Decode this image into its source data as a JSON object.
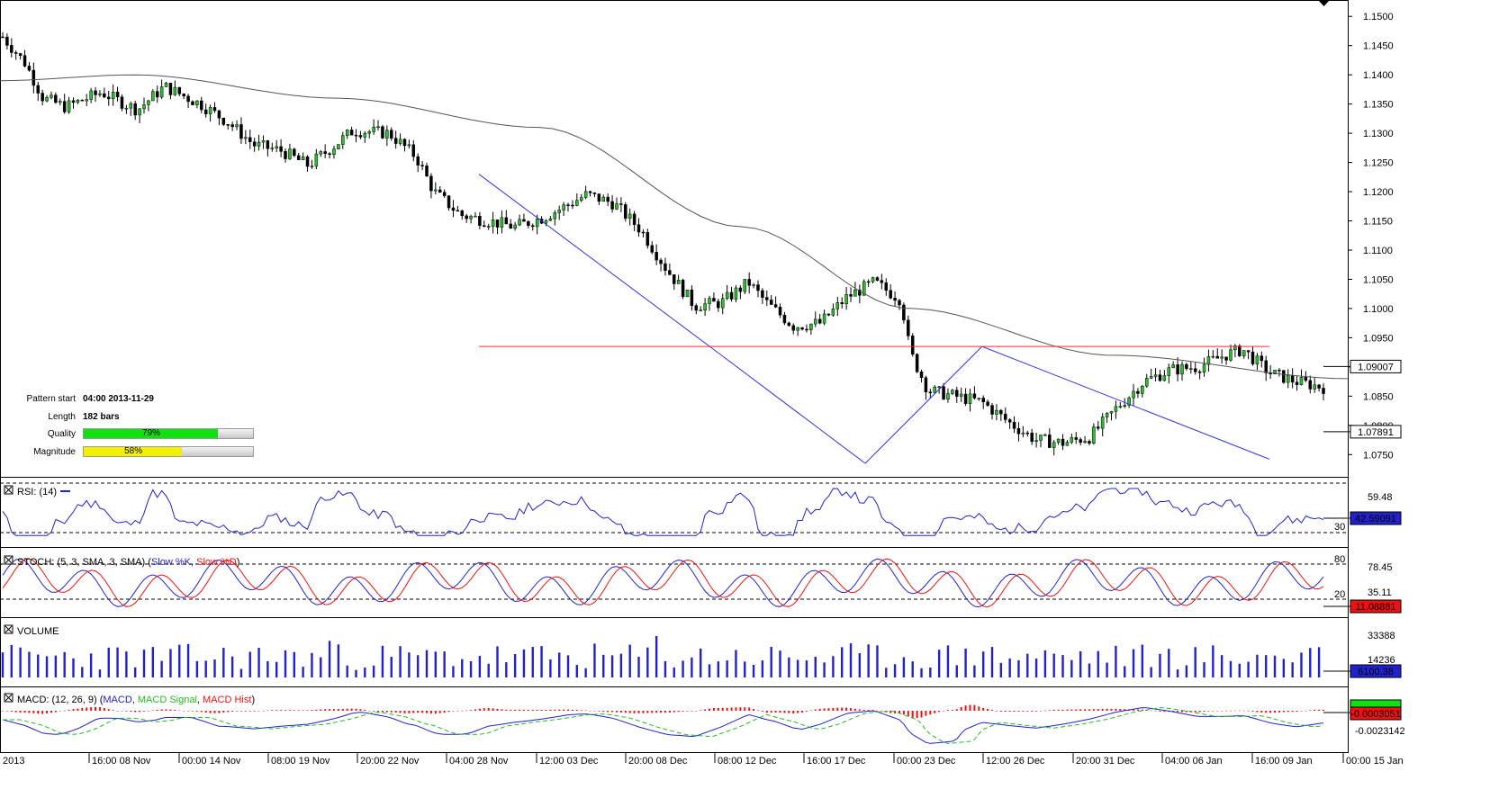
{
  "symbol_mark": "2013",
  "pattern_box": {
    "start_label": "Pattern start",
    "start_value": "04:00 2013-11-29",
    "length_label": "Length",
    "length_value": "182 bars",
    "quality_label": "Quality",
    "quality_value": "79%",
    "quality_pct": 79,
    "quality_color": "#11e011",
    "magnitude_label": "Magnitude",
    "magnitude_value": "58%",
    "magnitude_pct": 58,
    "magnitude_color": "#f2f200"
  },
  "chart_data": {
    "type": "candlestick",
    "x_tick_labels": [
      "16:00 08 Nov",
      "00:00 14 Nov",
      "08:00 19 Nov",
      "20:00 22 Nov",
      "04:00 28 Nov",
      "12:00 03 Dec",
      "20:00 08 Dec",
      "08:00 12 Dec",
      "16:00 17 Dec",
      "00:00 23 Dec",
      "12:00 26 Dec",
      "20:00 31 Dec",
      "04:00 06 Jan",
      "16:00 09 Jan",
      "00:00 15 Jan"
    ],
    "price_axis": {
      "ticks": [
        "1.1500",
        "1.1450",
        "1.1400",
        "1.1350",
        "1.1300",
        "1.1250",
        "1.1200",
        "1.1150",
        "1.1100",
        "1.1050",
        "1.1000",
        "1.0950",
        "1.0900",
        "1.0850",
        "1.0800",
        "1.0750"
      ],
      "range": [
        1.0715,
        1.1525
      ],
      "ma_value": "1.09007",
      "last_value": "1.07891"
    },
    "candle_count": 300,
    "close_path": [
      [
        0,
        1.1465
      ],
      [
        5,
        1.142
      ],
      [
        9,
        1.136
      ],
      [
        14,
        1.1345
      ],
      [
        22,
        1.137
      ],
      [
        30,
        1.134
      ],
      [
        36,
        1.138
      ],
      [
        44,
        1.135
      ],
      [
        50,
        1.132
      ],
      [
        56,
        1.128
      ],
      [
        62,
        1.127
      ],
      [
        68,
        1.1245
      ],
      [
        74,
        1.128
      ],
      [
        78,
        1.1305
      ],
      [
        86,
        1.13
      ],
      [
        92,
        1.126
      ],
      [
        96,
        1.12
      ],
      [
        102,
        1.116
      ],
      [
        108,
        1.115
      ],
      [
        114,
        1.114
      ],
      [
        120,
        1.1155
      ],
      [
        124,
        1.117
      ],
      [
        130,
        1.1195
      ],
      [
        136,
        1.118
      ],
      [
        142,
        1.1135
      ],
      [
        148,
        1.1065
      ],
      [
        154,
        1.1005
      ],
      [
        160,
        1.101
      ],
      [
        166,
        1.1045
      ],
      [
        170,
        1.101
      ],
      [
        176,
        1.097
      ],
      [
        182,
        1.0975
      ],
      [
        188,
        1.102
      ],
      [
        194,
        1.1045
      ],
      [
        200,
        1.1015
      ],
      [
        202,
        1.0925
      ],
      [
        206,
        1.086
      ],
      [
        212,
        1.085
      ],
      [
        218,
        1.084
      ],
      [
        224,
        1.0805
      ],
      [
        230,
        1.0775
      ],
      [
        236,
        1.077
      ],
      [
        242,
        1.078
      ],
      [
        248,
        1.083
      ],
      [
        254,
        1.0875
      ],
      [
        260,
        1.0895
      ],
      [
        266,
        1.09
      ],
      [
        272,
        1.092
      ],
      [
        276,
        1.093
      ],
      [
        282,
        1.089
      ],
      [
        288,
        1.0875
      ],
      [
        294,
        1.0865
      ]
    ],
    "ma200": [
      [
        0,
        1.139
      ],
      [
        40,
        1.14
      ],
      [
        100,
        1.136
      ],
      [
        160,
        1.131
      ],
      [
        220,
        1.114
      ],
      [
        270,
        1.1
      ],
      [
        330,
        1.092
      ],
      [
        400,
        1.088
      ]
    ],
    "pattern_lines": [
      {
        "from": [
          106,
          1.123
        ],
        "to": [
          160,
          1.092
        ],
        "color": "#3333dd"
      },
      {
        "from": [
          160,
          1.092
        ],
        "to": [
          192,
          1.0735
        ],
        "color": "#3333dd"
      },
      {
        "from": [
          192,
          1.0735
        ],
        "to": [
          218,
          1.0935
        ],
        "color": "#3333dd"
      },
      {
        "from": [
          218,
          1.0935
        ],
        "to": [
          282,
          1.0742
        ],
        "color": "#3333dd"
      },
      {
        "from": [
          106,
          1.0935
        ],
        "to": [
          282,
          1.0935
        ],
        "color": "#ff2a2a"
      }
    ],
    "panels": [
      {
        "name": "RSI",
        "label": "RSI: (14)",
        "levels": [
          "30"
        ],
        "values": [
          "59.48",
          "42.59091"
        ],
        "value_box_color": "#2222cc"
      },
      {
        "name": "STOCH",
        "label": "STOCH: (5, 3, SMA, 3, SMA)",
        "legend": [
          "Slow %K",
          "Slow %D"
        ],
        "legend_colors": [
          "#2222cc",
          "#ee1111"
        ],
        "levels": [
          "80",
          "20"
        ],
        "values": [
          "78.45",
          "35.11",
          "11.08881"
        ],
        "value_box_color": "#ee1111"
      },
      {
        "name": "VOLUME",
        "label": "VOLUME",
        "values": [
          "33388",
          "14236",
          "6100.38"
        ],
        "value_box_color": "#2222cc"
      },
      {
        "name": "MACD",
        "label": "MACD: (12, 26, 9)",
        "legend": [
          "MACD",
          "MACD Signal",
          "MACD Hist"
        ],
        "legend_colors": [
          "#2222cc",
          "#22bb22",
          "#ee1111"
        ],
        "values": [
          "-0.0003051",
          "-0.0023142"
        ],
        "value_box_color": "#ee1111"
      }
    ]
  }
}
